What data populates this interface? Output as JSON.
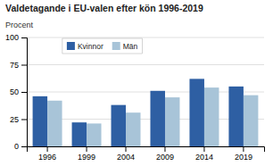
{
  "chart_data": {
    "type": "bar",
    "title": "Valdetagande i EU-valen efter kön 1996-2019",
    "ylabel": "Procent",
    "categories": [
      "1996",
      "1999",
      "2004",
      "2009",
      "2014",
      "2019"
    ],
    "series": [
      {
        "name": "Kvinnor",
        "color": "#2E5FA3",
        "values": [
          46,
          22,
          38,
          51,
          62,
          55
        ]
      },
      {
        "name": "Män",
        "color": "#A8C4D8",
        "values": [
          42,
          21,
          31,
          45,
          54,
          47
        ]
      }
    ],
    "ylim": [
      0,
      100
    ],
    "yticks": [
      0,
      25,
      50,
      75,
      100
    ],
    "grid": true,
    "legend": "top-left"
  }
}
